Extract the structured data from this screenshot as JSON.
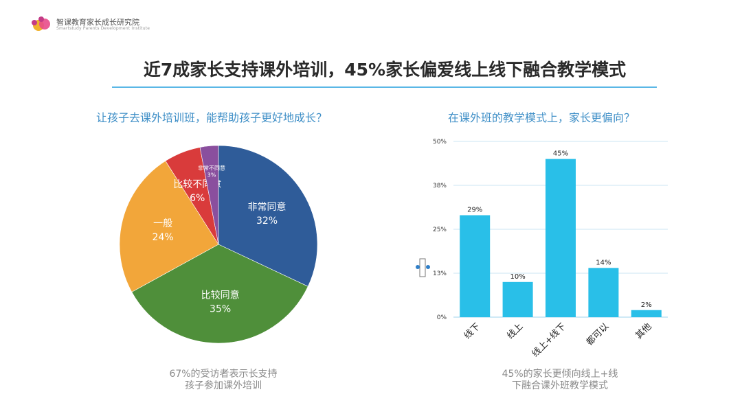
{
  "header": {
    "org_name": "智课教育家长成长研究院",
    "org_name_en": "Smartstudy Parents Development Institute"
  },
  "slide_title": "近7成家长支持课外培训，45%家长偏爱线上线下融合教学模式",
  "left_panel": {
    "question": "让孩子去课外培训班，能帮助孩子更好地成长？",
    "note_line1": "67%的受访者表示长支持",
    "note_line2": "孩子参加课外培训"
  },
  "right_panel": {
    "question": "在课外班的教学模式上，家长更偏向？",
    "note_line1": "45%的家长更倾向线上+线",
    "note_line2": "下融合课外班教学模式"
  },
  "chart_data": [
    {
      "type": "pie",
      "slices": [
        {
          "label": "非常同意",
          "value": 32,
          "display": "32%",
          "color": "#2f5c99"
        },
        {
          "label": "比较同意",
          "value": 35,
          "display": "35%",
          "color": "#4f8f3a"
        },
        {
          "label": "一般",
          "value": 24,
          "display": "24%",
          "color": "#f2a63a"
        },
        {
          "label": "比较不同意",
          "value": 6,
          "display": "6%",
          "color": "#d93b3b"
        },
        {
          "label": "非常不同意",
          "value": 3,
          "display": "3%",
          "color": "#8a4f9e"
        }
      ]
    },
    {
      "type": "bar",
      "categories": [
        "线下",
        "线上",
        "线上+线下",
        "都可以",
        "其他"
      ],
      "values": [
        29,
        10,
        45,
        14,
        2
      ],
      "value_labels": [
        "29%",
        "10%",
        "45%",
        "14%",
        "2%"
      ],
      "yticks": [
        "0%",
        "13%",
        "25%",
        "38%",
        "50%"
      ],
      "ylim": [
        0,
        50
      ],
      "grid": true,
      "bar_color": "#29bfe8"
    }
  ]
}
